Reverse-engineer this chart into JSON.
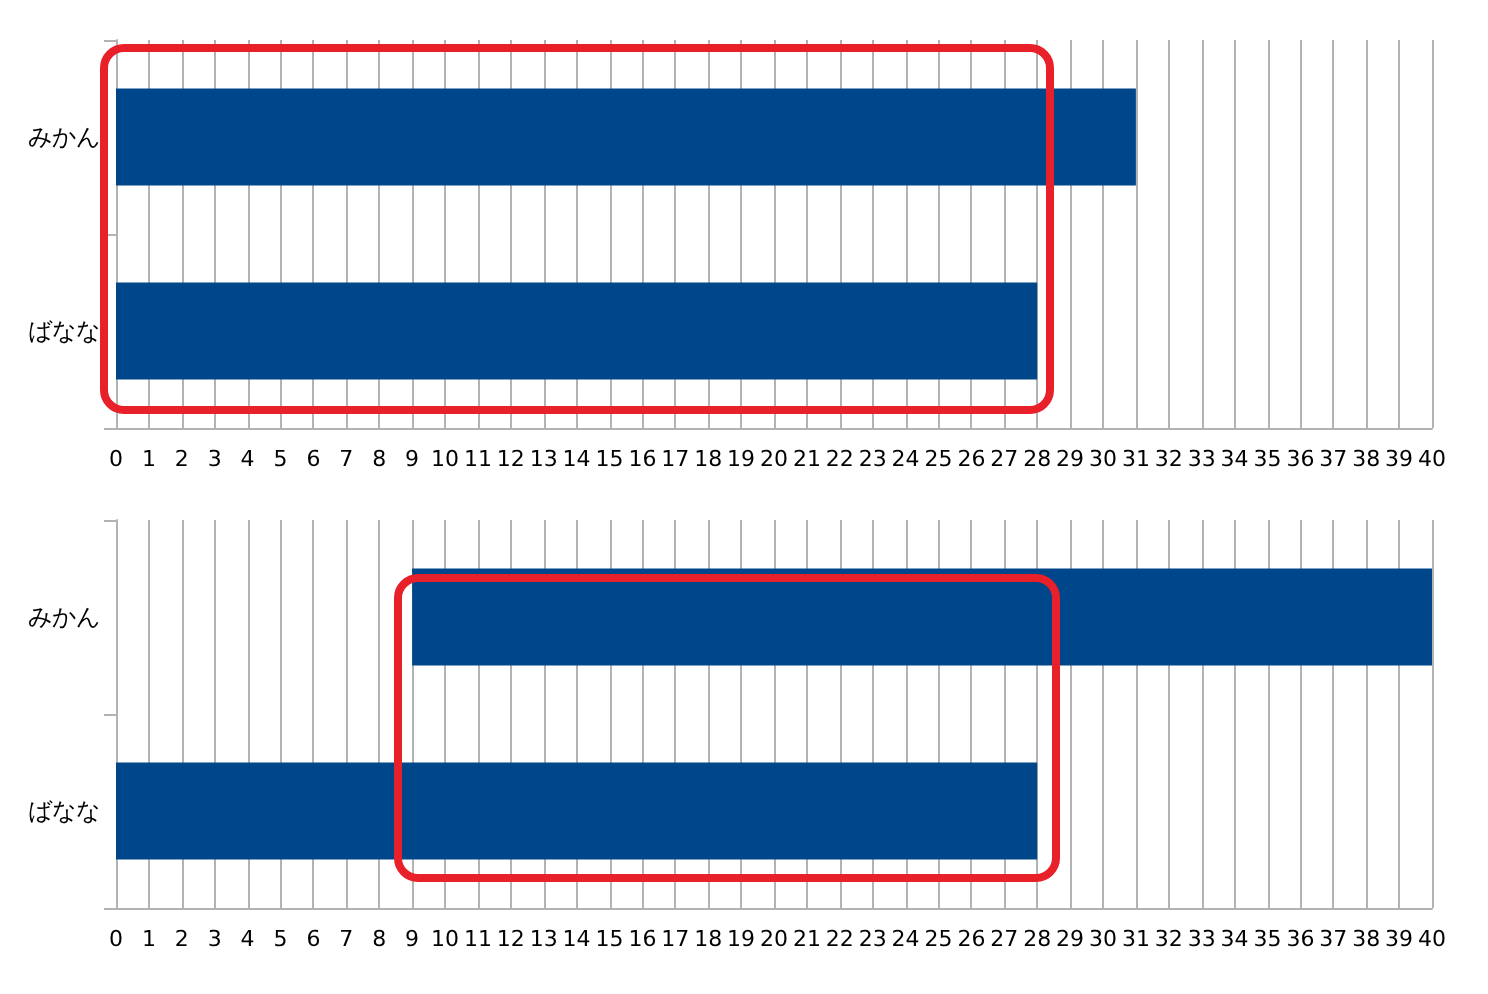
{
  "chart_data": [
    {
      "type": "bar",
      "orientation": "horizontal",
      "categories": [
        "みかん",
        "ばなな"
      ],
      "values": [
        31,
        28
      ],
      "color": "#00468b",
      "xlim": [
        0,
        40
      ],
      "xticks": [
        0,
        1,
        2,
        3,
        4,
        5,
        6,
        7,
        8,
        9,
        10,
        11,
        12,
        13,
        14,
        15,
        16,
        17,
        18,
        19,
        20,
        21,
        22,
        23,
        24,
        25,
        26,
        27,
        28,
        29,
        30,
        31,
        32,
        33,
        34,
        35,
        36,
        37,
        38,
        39,
        40
      ],
      "grid": "x"
    },
    {
      "type": "bar",
      "orientation": "horizontal",
      "categories": [
        "みかん",
        "ばなな"
      ],
      "values": [
        31,
        28
      ],
      "base": [
        9,
        0
      ],
      "color": "#00468b",
      "xlim": [
        0,
        40
      ],
      "xticks": [
        0,
        1,
        2,
        3,
        4,
        5,
        6,
        7,
        8,
        9,
        10,
        11,
        12,
        13,
        14,
        15,
        16,
        17,
        18,
        19,
        20,
        21,
        22,
        23,
        24,
        25,
        26,
        27,
        28,
        29,
        30,
        31,
        32,
        33,
        34,
        35,
        36,
        37,
        38,
        39,
        40
      ],
      "grid": "x"
    }
  ]
}
